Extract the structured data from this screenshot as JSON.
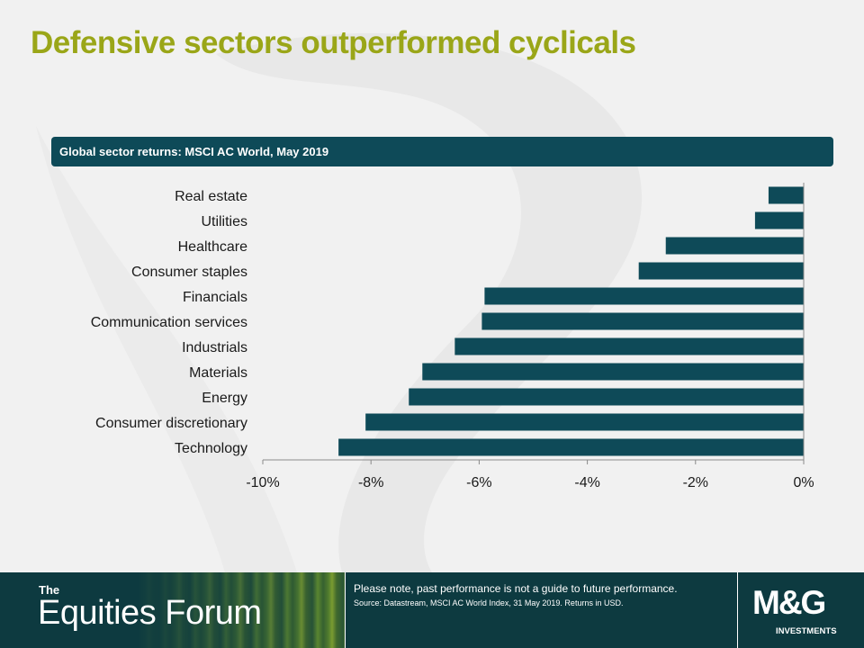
{
  "slide": {
    "title": "Defensive sectors outperformed cyclicals"
  },
  "chart_header": "Global sector returns:  MSCI AC World, May 2019",
  "chart_data": {
    "type": "bar",
    "orientation": "horizontal",
    "categories": [
      "Real estate",
      "Utilities",
      "Healthcare",
      "Consumer staples",
      "Financials",
      "Communication services",
      "Industrials",
      "Materials",
      "Energy",
      "Consumer discretionary",
      "Technology"
    ],
    "values": [
      -0.65,
      -0.9,
      -2.55,
      -3.05,
      -5.9,
      -5.95,
      -6.45,
      -7.05,
      -7.3,
      -8.1,
      -8.6
    ],
    "xlim": [
      -10,
      0
    ],
    "x_ticks": [
      -10,
      -8,
      -6,
      -4,
      -2,
      0
    ],
    "tick_labels": [
      "-10%",
      "-8%",
      "-6%",
      "-4%",
      "-2%",
      "0%"
    ],
    "bar_color": "#0e4a58",
    "grid": false
  },
  "footer": {
    "brand_the": "The",
    "brand_name": "Equities Forum",
    "note": "Please note, past performance  is not a guide to future performance.",
    "source": "Source: Datastream, MSCI  AC World Index, 31 May 2019. Returns in USD.",
    "logo_main": "M&G",
    "logo_sub": "INVESTMENTS"
  },
  "colors": {
    "title": "#9aa618",
    "accent_teal": "#0e4a58",
    "footer_bg": "#0d3a40"
  }
}
